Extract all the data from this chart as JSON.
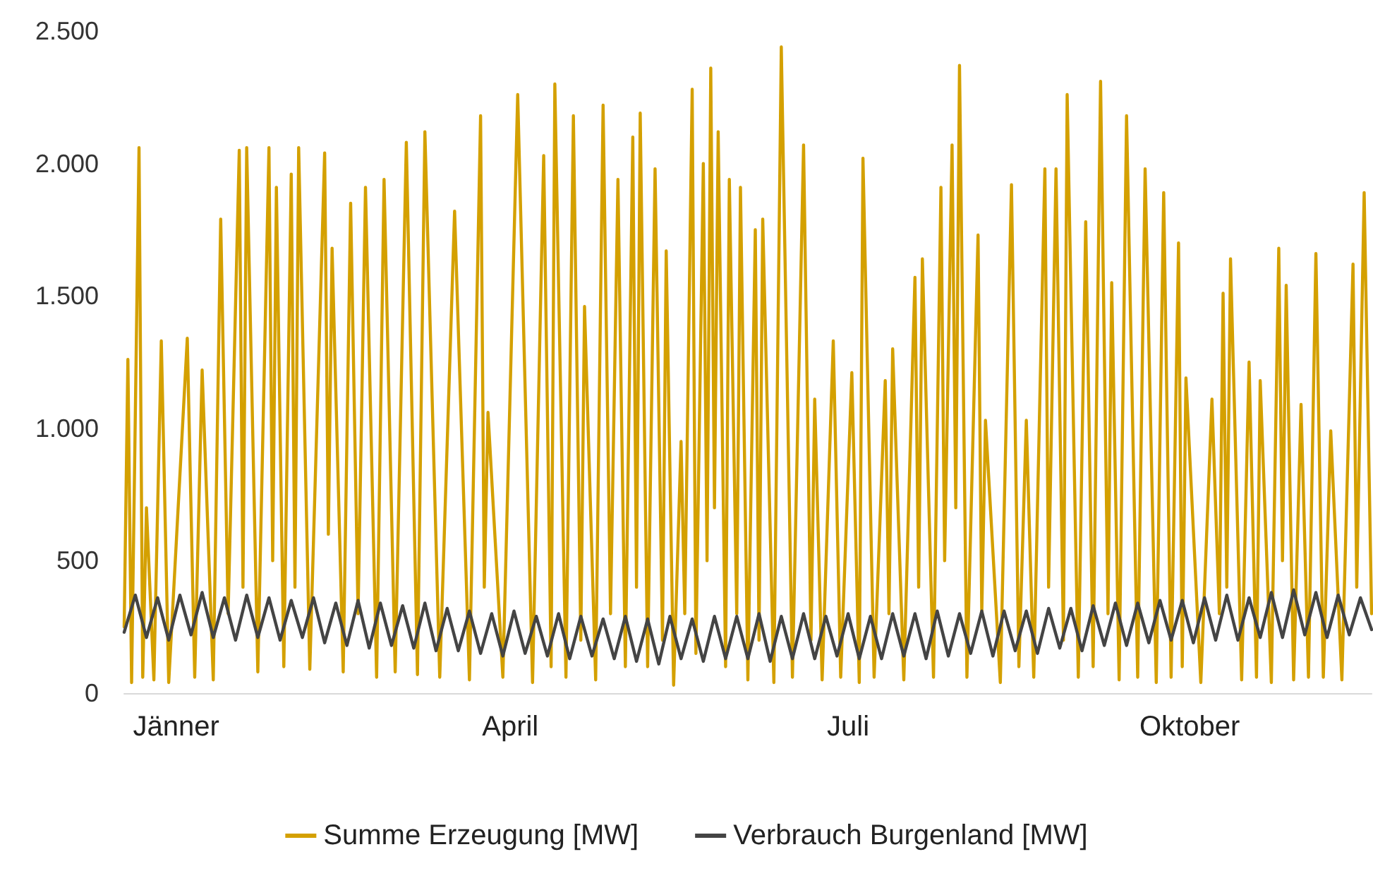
{
  "chart_data": {
    "type": "line",
    "xlim": [
      "--01-01",
      "--12-03"
    ],
    "xticks": [
      {
        "value": "--01-15",
        "label": "Jänner"
      },
      {
        "value": "--04-15",
        "label": "April"
      },
      {
        "value": "--07-15",
        "label": "Juli"
      },
      {
        "value": "--10-15",
        "label": "Oktober"
      }
    ],
    "ylim": [
      0,
      2500
    ],
    "yticks": [
      0,
      500,
      {
        "value": 1000,
        "label": "1.000"
      },
      {
        "value": 1500,
        "label": "1.500"
      },
      {
        "value": 2000,
        "label": "2.000"
      },
      {
        "value": 2500,
        "label": "2.500"
      }
    ],
    "grid": false,
    "legend": "bottom",
    "marker": "none",
    "line_style": "solid",
    "series": [
      {
        "name": "Summe Erzeugung [MW]",
        "color": "#d4a000",
        "x": [
          "--01-01",
          "--01-02",
          "--01-03",
          "--01-05",
          "--01-06",
          "--01-07",
          "--01-09",
          "--01-11",
          "--01-13",
          "--01-18",
          "--01-20",
          "--01-22",
          "--01-25",
          "--01-27",
          "--01-29",
          "--02-01",
          "--02-02",
          "--02-03",
          "--02-06",
          "--02-09",
          "--02-10",
          "--02-11",
          "--02-13",
          "--02-15",
          "--02-16",
          "--02-17",
          "--02-20",
          "--02-24",
          "--02-25",
          "--02-26",
          "--03-01",
          "--03-03",
          "--03-05",
          "--03-07",
          "--03-10",
          "--03-12",
          "--03-15",
          "--03-18",
          "--03-21",
          "--03-23",
          "--03-27",
          "--03-31",
          "--04-04",
          "--04-07",
          "--04-08",
          "--04-09",
          "--04-13",
          "--04-17",
          "--04-21",
          "--04-24",
          "--04-26",
          "--04-27",
          "--04-30",
          "--05-02",
          "--05-04",
          "--05-05",
          "--05-08",
          "--05-10",
          "--05-12",
          "--05-14",
          "--05-16",
          "--05-18",
          "--05-19",
          "--05-20",
          "--05-22",
          "--05-24",
          "--05-26",
          "--05-27",
          "--05-29",
          "--05-31",
          "--06-01",
          "--06-03",
          "--06-04",
          "--06-06",
          "--06-07",
          "--06-08",
          "--06-09",
          "--06-10",
          "--06-12",
          "--06-13",
          "--06-15",
          "--06-16",
          "--06-18",
          "--06-20",
          "--06-21",
          "--06-22",
          "--06-25",
          "--06-27",
          "--06-30",
          "--07-03",
          "--07-05",
          "--07-06",
          "--07-08",
          "--07-11",
          "--07-13",
          "--07-16",
          "--07-18",
          "--07-19",
          "--07-22",
          "--07-25",
          "--07-26",
          "--07-27",
          "--07-30",
          "--08-02",
          "--08-03",
          "--08-04",
          "--08-07",
          "--08-09",
          "--08-10",
          "--08-12",
          "--08-13",
          "--08-14",
          "--08-16",
          "--08-19",
          "--08-20",
          "--08-21",
          "--08-25",
          "--08-28",
          "--08-30",
          "--09-01",
          "--09-03",
          "--09-06",
          "--09-07",
          "--09-09",
          "--09-11",
          "--09-12",
          "--09-15",
          "--09-17",
          "--09-19",
          "--09-21",
          "--09-23",
          "--09-24",
          "--09-26",
          "--09-28",
          "--10-01",
          "--10-03",
          "--10-06",
          "--10-08",
          "--10-10",
          "--10-12",
          "--10-13",
          "--10-14",
          "--10-18",
          "--10-21",
          "--10-23",
          "--10-24",
          "--10-25",
          "--10-26",
          "--10-29",
          "--10-31",
          "--11-02",
          "--11-03",
          "--11-06",
          "--11-08",
          "--11-09",
          "--11-10",
          "--11-12",
          "--11-14",
          "--11-16",
          "--11-18",
          "--11-20",
          "--11-22",
          "--11-25",
          "--11-28",
          "--11-29",
          "--12-01",
          "--12-03"
        ],
        "values": [
          250,
          1260,
          40,
          2060,
          60,
          700,
          50,
          1330,
          40,
          1340,
          60,
          1220,
          50,
          1790,
          300,
          2050,
          400,
          2060,
          80,
          2060,
          500,
          1910,
          100,
          1960,
          400,
          2060,
          90,
          2040,
          600,
          1680,
          80,
          1850,
          300,
          1910,
          60,
          1940,
          80,
          2080,
          70,
          2120,
          60,
          1820,
          50,
          2180,
          400,
          1060,
          60,
          2260,
          40,
          2030,
          100,
          2300,
          60,
          2180,
          200,
          1460,
          50,
          2220,
          300,
          1940,
          100,
          2100,
          400,
          2190,
          100,
          1980,
          200,
          1670,
          30,
          950,
          300,
          2280,
          150,
          2000,
          500,
          2360,
          700,
          2120,
          100,
          1940,
          300,
          1910,
          50,
          1750,
          200,
          1790,
          40,
          2440,
          60,
          2070,
          200,
          1110,
          50,
          1330,
          60,
          1210,
          40,
          2020,
          60,
          1180,
          300,
          1300,
          50,
          1570,
          400,
          1640,
          60,
          1910,
          500,
          2070,
          700,
          2370,
          60,
          1730,
          300,
          1030,
          40,
          1920,
          100,
          1030,
          60,
          1980,
          400,
          1980,
          200,
          2260,
          60,
          1780,
          100,
          2310,
          300,
          1550,
          50,
          2180,
          60,
          1980,
          40,
          1890,
          60,
          1700,
          100,
          1190,
          40,
          1110,
          300,
          1510,
          400,
          1640,
          50,
          1250,
          60,
          1180,
          40,
          1680,
          500,
          1540,
          50,
          1090,
          60,
          1660,
          60,
          990,
          50,
          1620,
          400,
          1890,
          300
        ]
      },
      {
        "name": "Verbrauch Burgenland [MW]",
        "color": "#444444",
        "x": [
          "--01-01",
          "--01-04",
          "--01-07",
          "--01-10",
          "--01-13",
          "--01-16",
          "--01-19",
          "--01-22",
          "--01-25",
          "--01-28",
          "--01-31",
          "--02-03",
          "--02-06",
          "--02-09",
          "--02-12",
          "--02-15",
          "--02-18",
          "--02-21",
          "--02-24",
          "--02-27",
          "--03-02",
          "--03-05",
          "--03-08",
          "--03-11",
          "--03-14",
          "--03-17",
          "--03-20",
          "--03-23",
          "--03-26",
          "--03-29",
          "--04-01",
          "--04-04",
          "--04-07",
          "--04-10",
          "--04-13",
          "--04-16",
          "--04-19",
          "--04-22",
          "--04-25",
          "--04-28",
          "--05-01",
          "--05-04",
          "--05-07",
          "--05-10",
          "--05-13",
          "--05-16",
          "--05-19",
          "--05-22",
          "--05-25",
          "--05-28",
          "--05-31",
          "--06-03",
          "--06-06",
          "--06-09",
          "--06-12",
          "--06-15",
          "--06-18",
          "--06-21",
          "--06-24",
          "--06-27",
          "--06-30",
          "--07-03",
          "--07-06",
          "--07-09",
          "--07-12",
          "--07-15",
          "--07-18",
          "--07-21",
          "--07-24",
          "--07-27",
          "--07-30",
          "--08-02",
          "--08-05",
          "--08-08",
          "--08-11",
          "--08-14",
          "--08-17",
          "--08-20",
          "--08-23",
          "--08-26",
          "--08-29",
          "--09-01",
          "--09-04",
          "--09-07",
          "--09-10",
          "--09-13",
          "--09-16",
          "--09-19",
          "--09-22",
          "--09-25",
          "--09-28",
          "--10-01",
          "--10-04",
          "--10-07",
          "--10-10",
          "--10-13",
          "--10-16",
          "--10-19",
          "--10-22",
          "--10-25",
          "--10-28",
          "--10-31",
          "--11-03",
          "--11-06",
          "--11-09",
          "--11-12",
          "--11-15",
          "--11-18",
          "--11-21",
          "--11-24",
          "--11-27",
          "--11-30",
          "--12-03"
        ],
        "values": [
          230,
          370,
          210,
          360,
          200,
          370,
          220,
          380,
          210,
          360,
          200,
          370,
          210,
          360,
          200,
          350,
          210,
          360,
          190,
          340,
          180,
          350,
          170,
          340,
          180,
          330,
          170,
          340,
          160,
          320,
          160,
          310,
          150,
          300,
          140,
          310,
          150,
          290,
          140,
          300,
          130,
          290,
          140,
          280,
          130,
          290,
          120,
          280,
          110,
          290,
          130,
          280,
          120,
          290,
          130,
          290,
          130,
          300,
          120,
          290,
          130,
          300,
          130,
          290,
          140,
          300,
          130,
          290,
          130,
          300,
          140,
          300,
          130,
          310,
          140,
          300,
          150,
          310,
          140,
          310,
          160,
          310,
          150,
          320,
          170,
          320,
          160,
          330,
          180,
          340,
          180,
          340,
          190,
          350,
          200,
          350,
          190,
          360,
          200,
          370,
          200,
          360,
          210,
          380,
          210,
          390,
          220,
          380,
          210,
          370,
          220,
          360,
          240
        ]
      }
    ]
  }
}
